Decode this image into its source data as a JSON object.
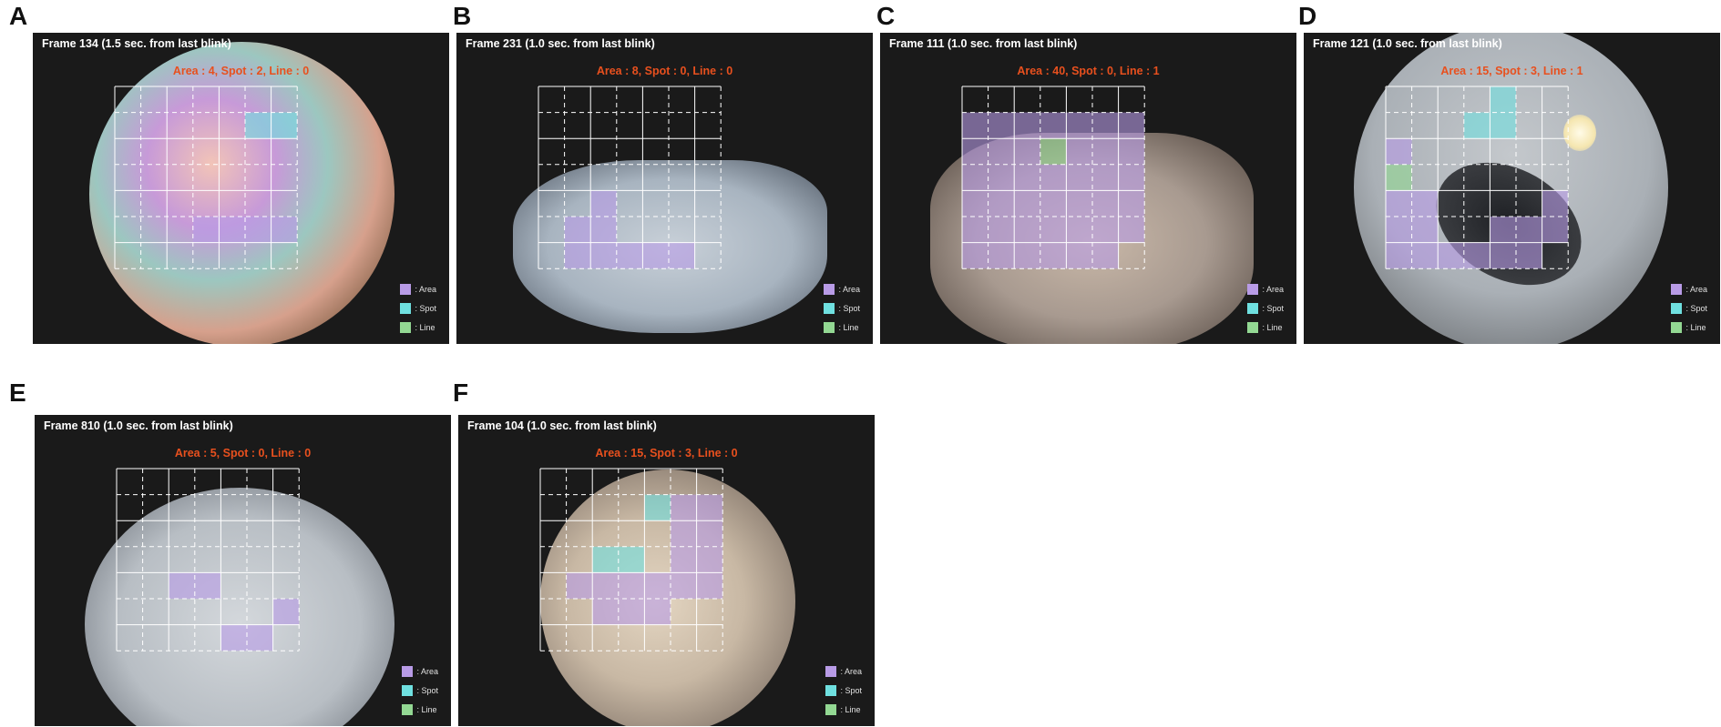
{
  "colors": {
    "area": "#b89be6",
    "spot": "#6fe0e0",
    "line": "#93d893",
    "label": "#e8501e",
    "background": "#1a1a1a"
  },
  "legend": {
    "area": ": Area",
    "spot": ": Spot",
    "line": ": Line"
  },
  "panels": [
    {
      "letter": "A",
      "frame": "Frame 134 (1.5 sec. from last blink)",
      "counts": "Area : 4, Spot : 2, Line : 0",
      "cells": [
        {
          "type": "spot",
          "c": 5,
          "r": 1
        },
        {
          "type": "spot",
          "c": 6,
          "r": 1
        },
        {
          "type": "area",
          "c": 3,
          "r": 5
        },
        {
          "type": "area",
          "c": 4,
          "r": 5
        },
        {
          "type": "area",
          "c": 5,
          "r": 5
        },
        {
          "type": "area",
          "c": 6,
          "r": 5
        }
      ]
    },
    {
      "letter": "B",
      "frame": "Frame 231 (1.0 sec. from last blink)",
      "counts": "Area : 8, Spot : 0, Line : 0",
      "cells": [
        {
          "type": "area",
          "c": 2,
          "r": 4
        },
        {
          "type": "area",
          "c": 1,
          "r": 5
        },
        {
          "type": "area",
          "c": 2,
          "r": 5
        },
        {
          "type": "area",
          "c": 1,
          "r": 6
        },
        {
          "type": "area",
          "c": 3,
          "r": 6
        },
        {
          "type": "area",
          "c": 4,
          "r": 6
        },
        {
          "type": "area",
          "c": 5,
          "r": 6
        },
        {
          "type": "area",
          "c": 2,
          "r": 6
        }
      ]
    },
    {
      "letter": "C",
      "frame": "Frame 111 (1.0 sec. from last blink)",
      "counts": "Area : 40, Spot : 0, Line : 1",
      "cells": [
        {
          "type": "area",
          "c": 0,
          "r": 1
        },
        {
          "type": "area",
          "c": 1,
          "r": 1
        },
        {
          "type": "area",
          "c": 2,
          "r": 1
        },
        {
          "type": "area",
          "c": 3,
          "r": 1
        },
        {
          "type": "area",
          "c": 4,
          "r": 1
        },
        {
          "type": "area",
          "c": 5,
          "r": 1
        },
        {
          "type": "area",
          "c": 6,
          "r": 1
        },
        {
          "type": "area",
          "c": 0,
          "r": 2
        },
        {
          "type": "area",
          "c": 1,
          "r": 2
        },
        {
          "type": "area",
          "c": 2,
          "r": 2
        },
        {
          "type": "line",
          "c": 3,
          "r": 2
        },
        {
          "type": "area",
          "c": 4,
          "r": 2
        },
        {
          "type": "area",
          "c": 5,
          "r": 2
        },
        {
          "type": "area",
          "c": 6,
          "r": 2
        },
        {
          "type": "area",
          "c": 0,
          "r": 3
        },
        {
          "type": "area",
          "c": 1,
          "r": 3
        },
        {
          "type": "area",
          "c": 2,
          "r": 3
        },
        {
          "type": "area",
          "c": 3,
          "r": 3
        },
        {
          "type": "area",
          "c": 4,
          "r": 3
        },
        {
          "type": "area",
          "c": 5,
          "r": 3
        },
        {
          "type": "area",
          "c": 6,
          "r": 3
        },
        {
          "type": "area",
          "c": 0,
          "r": 4
        },
        {
          "type": "area",
          "c": 1,
          "r": 4
        },
        {
          "type": "area",
          "c": 2,
          "r": 4
        },
        {
          "type": "area",
          "c": 3,
          "r": 4
        },
        {
          "type": "area",
          "c": 4,
          "r": 4
        },
        {
          "type": "area",
          "c": 5,
          "r": 4
        },
        {
          "type": "area",
          "c": 6,
          "r": 4
        },
        {
          "type": "area",
          "c": 0,
          "r": 5
        },
        {
          "type": "area",
          "c": 1,
          "r": 5
        },
        {
          "type": "area",
          "c": 2,
          "r": 5
        },
        {
          "type": "area",
          "c": 3,
          "r": 5
        },
        {
          "type": "area",
          "c": 4,
          "r": 5
        },
        {
          "type": "area",
          "c": 5,
          "r": 5
        },
        {
          "type": "area",
          "c": 6,
          "r": 5
        },
        {
          "type": "area",
          "c": 0,
          "r": 6
        },
        {
          "type": "area",
          "c": 1,
          "r": 6
        },
        {
          "type": "area",
          "c": 2,
          "r": 6
        },
        {
          "type": "area",
          "c": 3,
          "r": 6
        },
        {
          "type": "area",
          "c": 4,
          "r": 6
        },
        {
          "type": "area",
          "c": 5,
          "r": 6
        }
      ]
    },
    {
      "letter": "D",
      "frame": "Frame 121 (1.0 sec. from last blink)",
      "counts": "Area : 15, Spot : 3, Line : 1",
      "cells": [
        {
          "type": "spot",
          "c": 4,
          "r": 0
        },
        {
          "type": "spot",
          "c": 3,
          "r": 1
        },
        {
          "type": "spot",
          "c": 4,
          "r": 1
        },
        {
          "type": "area",
          "c": 0,
          "r": 2
        },
        {
          "type": "line",
          "c": 0,
          "r": 3
        },
        {
          "type": "area",
          "c": 0,
          "r": 4
        },
        {
          "type": "area",
          "c": 1,
          "r": 4
        },
        {
          "type": "area",
          "c": 6,
          "r": 4
        },
        {
          "type": "area",
          "c": 0,
          "r": 5
        },
        {
          "type": "area",
          "c": 1,
          "r": 5
        },
        {
          "type": "area",
          "c": 4,
          "r": 5
        },
        {
          "type": "area",
          "c": 5,
          "r": 5
        },
        {
          "type": "area",
          "c": 6,
          "r": 5
        },
        {
          "type": "area",
          "c": 0,
          "r": 6
        },
        {
          "type": "area",
          "c": 1,
          "r": 6
        },
        {
          "type": "area",
          "c": 2,
          "r": 6
        },
        {
          "type": "area",
          "c": 3,
          "r": 6
        },
        {
          "type": "area",
          "c": 4,
          "r": 6
        },
        {
          "type": "area",
          "c": 5,
          "r": 6
        }
      ]
    },
    {
      "letter": "E",
      "frame": "Frame 810 (1.0 sec. from last blink)",
      "counts": "Area : 5, Spot : 0, Line : 0",
      "cells": [
        {
          "type": "area",
          "c": 2,
          "r": 4
        },
        {
          "type": "area",
          "c": 3,
          "r": 4
        },
        {
          "type": "area",
          "c": 6,
          "r": 5
        },
        {
          "type": "area",
          "c": 4,
          "r": 6
        },
        {
          "type": "area",
          "c": 5,
          "r": 6
        }
      ]
    },
    {
      "letter": "F",
      "frame": "Frame 104 (1.0 sec. from last blink)",
      "counts": "Area : 15, Spot : 3, Line : 0",
      "cells": [
        {
          "type": "spot",
          "c": 4,
          "r": 1
        },
        {
          "type": "area",
          "c": 5,
          "r": 1
        },
        {
          "type": "area",
          "c": 6,
          "r": 1
        },
        {
          "type": "area",
          "c": 5,
          "r": 2
        },
        {
          "type": "area",
          "c": 6,
          "r": 2
        },
        {
          "type": "spot",
          "c": 2,
          "r": 3
        },
        {
          "type": "spot",
          "c": 3,
          "r": 3
        },
        {
          "type": "area",
          "c": 5,
          "r": 3
        },
        {
          "type": "area",
          "c": 6,
          "r": 3
        },
        {
          "type": "area",
          "c": 1,
          "r": 4
        },
        {
          "type": "area",
          "c": 2,
          "r": 4
        },
        {
          "type": "area",
          "c": 3,
          "r": 4
        },
        {
          "type": "area",
          "c": 4,
          "r": 4
        },
        {
          "type": "area",
          "c": 5,
          "r": 4
        },
        {
          "type": "area",
          "c": 6,
          "r": 4
        },
        {
          "type": "area",
          "c": 2,
          "r": 5
        },
        {
          "type": "area",
          "c": 3,
          "r": 5
        },
        {
          "type": "area",
          "c": 4,
          "r": 5
        }
      ]
    }
  ]
}
